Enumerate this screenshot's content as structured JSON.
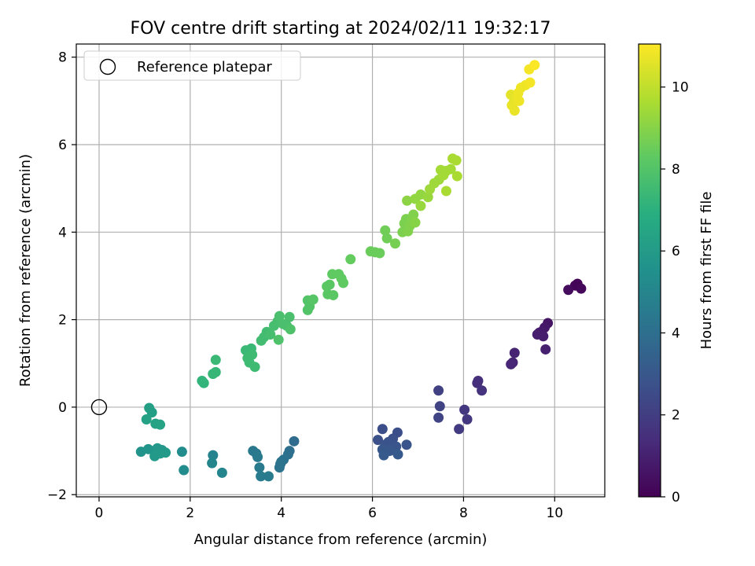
{
  "chart_data": {
    "type": "scatter",
    "title": "FOV centre drift starting at 2024/02/11 19:32:17",
    "xlabel": "Angular distance from reference (arcmin)",
    "ylabel": "Rotation from reference (arcmin)",
    "xlim": [
      -0.5,
      11.1
    ],
    "ylim": [
      -2.05,
      8.3
    ],
    "xticks": [
      0,
      2,
      4,
      6,
      8,
      10
    ],
    "yticks": [
      -2,
      0,
      2,
      4,
      6,
      8
    ],
    "grid": true,
    "legend": {
      "position": "top-left",
      "entries": [
        {
          "label": "Reference platepar",
          "marker": "open-circle"
        }
      ]
    },
    "reference_point": {
      "x": 0,
      "y": 0
    },
    "colorbar": {
      "label": "Hours from first FF file",
      "colormap": "viridis",
      "range": [
        0,
        11.05
      ],
      "ticks": [
        0,
        2,
        4,
        6,
        8,
        10
      ]
    },
    "points": [
      {
        "x": 10.5,
        "y": 2.82,
        "c": 0.1
      },
      {
        "x": 10.45,
        "y": 2.78,
        "c": 0.1
      },
      {
        "x": 10.58,
        "y": 2.71,
        "c": 0.2
      },
      {
        "x": 10.3,
        "y": 2.68,
        "c": 0.3
      },
      {
        "x": 9.85,
        "y": 1.92,
        "c": 0.6
      },
      {
        "x": 9.78,
        "y": 1.82,
        "c": 0.7
      },
      {
        "x": 9.72,
        "y": 1.73,
        "c": 0.8
      },
      {
        "x": 9.66,
        "y": 1.7,
        "c": 0.8
      },
      {
        "x": 9.62,
        "y": 1.66,
        "c": 0.9
      },
      {
        "x": 9.75,
        "y": 1.62,
        "c": 0.9
      },
      {
        "x": 9.8,
        "y": 1.32,
        "c": 1.0
      },
      {
        "x": 9.12,
        "y": 1.24,
        "c": 1.1
      },
      {
        "x": 9.08,
        "y": 1.02,
        "c": 1.1
      },
      {
        "x": 9.04,
        "y": 0.98,
        "c": 1.2
      },
      {
        "x": 8.32,
        "y": 0.6,
        "c": 1.5
      },
      {
        "x": 8.3,
        "y": 0.55,
        "c": 1.5
      },
      {
        "x": 8.4,
        "y": 0.38,
        "c": 1.6
      },
      {
        "x": 8.02,
        "y": -0.06,
        "c": 1.8
      },
      {
        "x": 8.08,
        "y": -0.28,
        "c": 1.8
      },
      {
        "x": 7.9,
        "y": -0.5,
        "c": 1.9
      },
      {
        "x": 7.45,
        "y": 0.38,
        "c": 2.1
      },
      {
        "x": 7.48,
        "y": 0.02,
        "c": 2.2
      },
      {
        "x": 7.45,
        "y": -0.24,
        "c": 2.2
      },
      {
        "x": 6.22,
        "y": -0.5,
        "c": 2.6
      },
      {
        "x": 6.55,
        "y": -0.58,
        "c": 2.6
      },
      {
        "x": 6.45,
        "y": -0.72,
        "c": 2.7
      },
      {
        "x": 6.12,
        "y": -0.75,
        "c": 2.7
      },
      {
        "x": 6.35,
        "y": -0.8,
        "c": 2.8
      },
      {
        "x": 6.28,
        "y": -0.86,
        "c": 2.8
      },
      {
        "x": 6.42,
        "y": -0.86,
        "c": 2.8
      },
      {
        "x": 6.52,
        "y": -0.9,
        "c": 2.9
      },
      {
        "x": 6.75,
        "y": -0.86,
        "c": 2.9
      },
      {
        "x": 6.22,
        "y": -0.97,
        "c": 3.0
      },
      {
        "x": 6.38,
        "y": -1.0,
        "c": 3.0
      },
      {
        "x": 6.25,
        "y": -1.1,
        "c": 3.1
      },
      {
        "x": 6.56,
        "y": -1.08,
        "c": 3.1
      },
      {
        "x": 4.28,
        "y": -0.78,
        "c": 3.9
      },
      {
        "x": 4.18,
        "y": -1.0,
        "c": 4.0
      },
      {
        "x": 4.15,
        "y": -1.08,
        "c": 4.0
      },
      {
        "x": 4.05,
        "y": -1.2,
        "c": 4.1
      },
      {
        "x": 4.0,
        "y": -1.25,
        "c": 4.1
      },
      {
        "x": 3.98,
        "y": -1.3,
        "c": 4.2
      },
      {
        "x": 3.96,
        "y": -1.38,
        "c": 4.2
      },
      {
        "x": 3.38,
        "y": -1.0,
        "c": 4.4
      },
      {
        "x": 3.45,
        "y": -1.06,
        "c": 4.4
      },
      {
        "x": 3.48,
        "y": -1.14,
        "c": 4.5
      },
      {
        "x": 3.52,
        "y": -1.38,
        "c": 4.5
      },
      {
        "x": 3.55,
        "y": -1.58,
        "c": 4.6
      },
      {
        "x": 3.72,
        "y": -1.58,
        "c": 4.6
      },
      {
        "x": 2.5,
        "y": -1.1,
        "c": 4.9
      },
      {
        "x": 2.48,
        "y": -1.28,
        "c": 5.0
      },
      {
        "x": 2.7,
        "y": -1.5,
        "c": 5.0
      },
      {
        "x": 1.82,
        "y": -1.02,
        "c": 5.3
      },
      {
        "x": 1.86,
        "y": -1.44,
        "c": 5.3
      },
      {
        "x": 0.92,
        "y": -1.02,
        "c": 5.6
      },
      {
        "x": 1.08,
        "y": -0.96,
        "c": 5.7
      },
      {
        "x": 1.2,
        "y": -1.0,
        "c": 5.7
      },
      {
        "x": 1.28,
        "y": -0.94,
        "c": 5.8
      },
      {
        "x": 1.38,
        "y": -0.98,
        "c": 5.8
      },
      {
        "x": 1.46,
        "y": -1.04,
        "c": 5.9
      },
      {
        "x": 1.22,
        "y": -1.12,
        "c": 5.9
      },
      {
        "x": 1.34,
        "y": -1.06,
        "c": 5.9
      },
      {
        "x": 1.1,
        "y": -0.02,
        "c": 6.2
      },
      {
        "x": 1.16,
        "y": -0.12,
        "c": 6.2
      },
      {
        "x": 1.04,
        "y": -0.28,
        "c": 6.3
      },
      {
        "x": 1.24,
        "y": -0.38,
        "c": 6.3
      },
      {
        "x": 1.34,
        "y": -0.4,
        "c": 6.4
      },
      {
        "x": 2.3,
        "y": 0.55,
        "c": 7.2
      },
      {
        "x": 2.26,
        "y": 0.6,
        "c": 7.2
      },
      {
        "x": 2.5,
        "y": 0.76,
        "c": 7.3
      },
      {
        "x": 2.56,
        "y": 0.8,
        "c": 7.3
      },
      {
        "x": 2.56,
        "y": 1.08,
        "c": 7.4
      },
      {
        "x": 3.22,
        "y": 1.3,
        "c": 7.4
      },
      {
        "x": 3.34,
        "y": 1.34,
        "c": 7.4
      },
      {
        "x": 3.26,
        "y": 1.12,
        "c": 7.5
      },
      {
        "x": 3.3,
        "y": 1.02,
        "c": 7.5
      },
      {
        "x": 3.42,
        "y": 0.92,
        "c": 7.5
      },
      {
        "x": 3.36,
        "y": 1.2,
        "c": 7.5
      },
      {
        "x": 3.56,
        "y": 1.52,
        "c": 7.6
      },
      {
        "x": 3.62,
        "y": 1.6,
        "c": 7.6
      },
      {
        "x": 3.68,
        "y": 1.72,
        "c": 7.6
      },
      {
        "x": 3.76,
        "y": 1.66,
        "c": 7.7
      },
      {
        "x": 3.84,
        "y": 1.86,
        "c": 7.7
      },
      {
        "x": 3.92,
        "y": 1.96,
        "c": 7.7
      },
      {
        "x": 3.96,
        "y": 2.08,
        "c": 7.8
      },
      {
        "x": 4.04,
        "y": 1.9,
        "c": 7.8
      },
      {
        "x": 4.12,
        "y": 1.86,
        "c": 7.8
      },
      {
        "x": 4.18,
        "y": 2.06,
        "c": 7.8
      },
      {
        "x": 4.2,
        "y": 1.78,
        "c": 7.9
      },
      {
        "x": 3.94,
        "y": 1.54,
        "c": 7.9
      },
      {
        "x": 4.58,
        "y": 2.44,
        "c": 8.0
      },
      {
        "x": 4.62,
        "y": 2.3,
        "c": 8.0
      },
      {
        "x": 4.58,
        "y": 2.22,
        "c": 8.0
      },
      {
        "x": 4.7,
        "y": 2.46,
        "c": 8.1
      },
      {
        "x": 5.0,
        "y": 2.76,
        "c": 8.2
      },
      {
        "x": 5.06,
        "y": 2.8,
        "c": 8.2
      },
      {
        "x": 5.02,
        "y": 2.58,
        "c": 8.2
      },
      {
        "x": 5.14,
        "y": 2.56,
        "c": 8.2
      },
      {
        "x": 5.12,
        "y": 3.04,
        "c": 8.3
      },
      {
        "x": 5.26,
        "y": 3.04,
        "c": 8.3
      },
      {
        "x": 5.32,
        "y": 2.94,
        "c": 8.3
      },
      {
        "x": 5.36,
        "y": 2.84,
        "c": 8.3
      },
      {
        "x": 5.52,
        "y": 3.38,
        "c": 8.4
      },
      {
        "x": 5.96,
        "y": 3.56,
        "c": 8.5
      },
      {
        "x": 6.06,
        "y": 3.54,
        "c": 8.5
      },
      {
        "x": 6.16,
        "y": 3.52,
        "c": 8.5
      },
      {
        "x": 6.28,
        "y": 4.04,
        "c": 8.6
      },
      {
        "x": 6.32,
        "y": 3.86,
        "c": 8.6
      },
      {
        "x": 6.5,
        "y": 3.74,
        "c": 8.7
      },
      {
        "x": 6.66,
        "y": 4.0,
        "c": 8.8
      },
      {
        "x": 6.7,
        "y": 4.2,
        "c": 8.8
      },
      {
        "x": 6.74,
        "y": 4.3,
        "c": 8.8
      },
      {
        "x": 6.78,
        "y": 4.02,
        "c": 8.9
      },
      {
        "x": 6.82,
        "y": 4.14,
        "c": 8.9
      },
      {
        "x": 6.86,
        "y": 4.28,
        "c": 8.9
      },
      {
        "x": 6.9,
        "y": 4.4,
        "c": 8.9
      },
      {
        "x": 6.94,
        "y": 4.22,
        "c": 9.0
      },
      {
        "x": 6.76,
        "y": 4.72,
        "c": 9.1
      },
      {
        "x": 6.94,
        "y": 4.76,
        "c": 9.2
      },
      {
        "x": 7.06,
        "y": 4.86,
        "c": 9.2
      },
      {
        "x": 7.06,
        "y": 4.6,
        "c": 9.3
      },
      {
        "x": 7.22,
        "y": 4.8,
        "c": 9.3
      },
      {
        "x": 7.26,
        "y": 4.98,
        "c": 9.4
      },
      {
        "x": 7.36,
        "y": 5.12,
        "c": 9.4
      },
      {
        "x": 7.46,
        "y": 5.2,
        "c": 9.4
      },
      {
        "x": 7.5,
        "y": 5.42,
        "c": 9.5
      },
      {
        "x": 7.56,
        "y": 5.3,
        "c": 9.5
      },
      {
        "x": 7.62,
        "y": 5.4,
        "c": 9.5
      },
      {
        "x": 7.72,
        "y": 5.44,
        "c": 9.5
      },
      {
        "x": 7.76,
        "y": 5.68,
        "c": 9.6
      },
      {
        "x": 7.84,
        "y": 5.64,
        "c": 9.6
      },
      {
        "x": 7.86,
        "y": 5.28,
        "c": 9.6
      },
      {
        "x": 7.62,
        "y": 4.94,
        "c": 9.6
      },
      {
        "x": 9.04,
        "y": 7.14,
        "c": 10.6
      },
      {
        "x": 9.1,
        "y": 6.96,
        "c": 10.6
      },
      {
        "x": 9.06,
        "y": 6.9,
        "c": 10.7
      },
      {
        "x": 9.12,
        "y": 6.78,
        "c": 10.7
      },
      {
        "x": 9.16,
        "y": 7.08,
        "c": 10.7
      },
      {
        "x": 9.22,
        "y": 7.0,
        "c": 10.8
      },
      {
        "x": 9.26,
        "y": 7.3,
        "c": 10.8
      },
      {
        "x": 9.36,
        "y": 7.36,
        "c": 10.8
      },
      {
        "x": 9.46,
        "y": 7.42,
        "c": 10.9
      },
      {
        "x": 9.44,
        "y": 7.72,
        "c": 10.9
      },
      {
        "x": 9.56,
        "y": 7.82,
        "c": 11.0
      },
      {
        "x": 9.2,
        "y": 7.18,
        "c": 10.8
      }
    ]
  }
}
